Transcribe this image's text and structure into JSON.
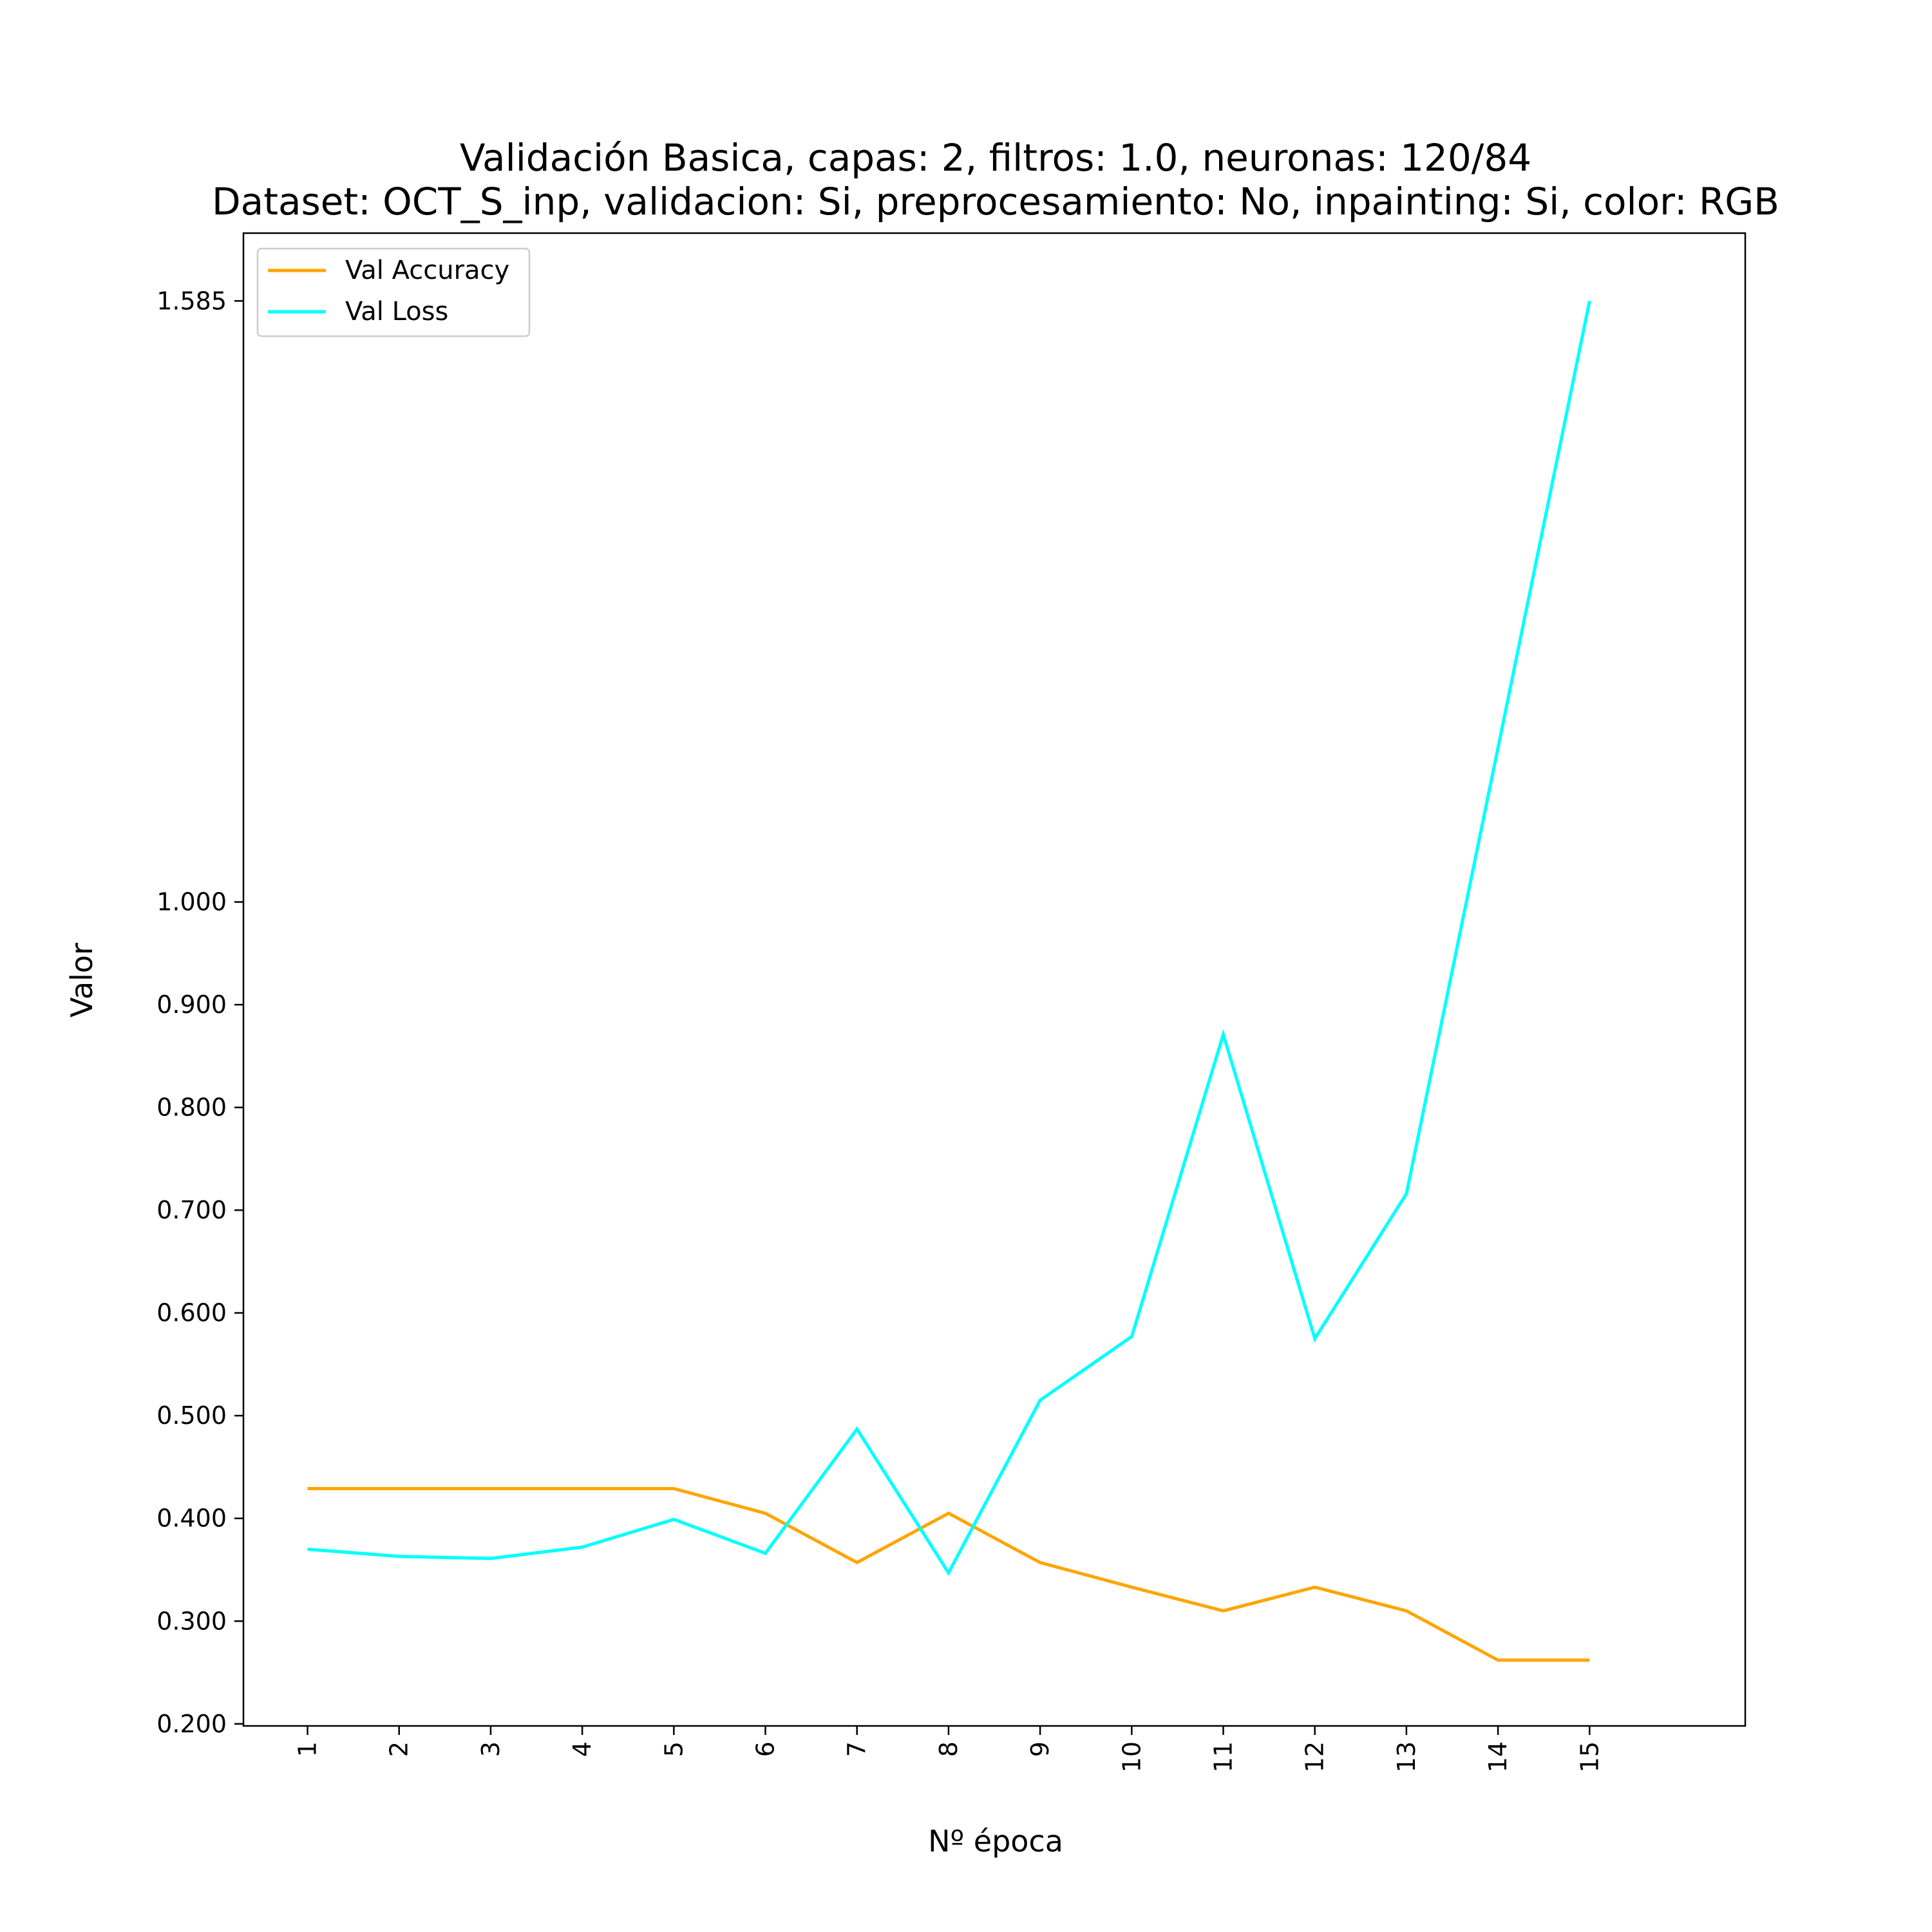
{
  "chart_data": {
    "type": "line",
    "title": "Validación Basica, capas: 2, filtros: 1.0, neuronas: 120/84",
    "subtitle": "Dataset: OCT_S_inp, validacion: Si, preprocesamiento: No, inpainting: Si, color: RGB",
    "xlabel": "Nº época",
    "ylabel": "Valor",
    "x": [
      1,
      2,
      3,
      4,
      5,
      6,
      7,
      8,
      9,
      10,
      11,
      12,
      13,
      14,
      15
    ],
    "x_tick_labels": [
      "1",
      "2",
      "3",
      "4",
      "5",
      "6",
      "7",
      "8",
      "9",
      "10",
      "11",
      "12",
      "13",
      "14",
      "15"
    ],
    "y_ticks": [
      0.2,
      0.3,
      0.4,
      0.5,
      0.6,
      0.7,
      0.8,
      0.9,
      1.0,
      1.585
    ],
    "y_tick_labels": [
      "0.200",
      "0.300",
      "0.400",
      "0.500",
      "0.600",
      "0.700",
      "0.800",
      "0.900",
      "1.000",
      "1.585"
    ],
    "xlim": [
      0.3,
      16.7
    ],
    "ylim": [
      0.198,
      1.651
    ],
    "grid": false,
    "legend_position": "top-left",
    "series": [
      {
        "name": "Val Accuracy",
        "color": "#FFA500",
        "values": [
          0.429,
          0.429,
          0.429,
          0.429,
          0.429,
          0.405,
          0.357,
          0.405,
          0.357,
          0.333,
          0.31,
          0.333,
          0.31,
          0.262,
          0.262
        ]
      },
      {
        "name": "Val Loss",
        "color": "#00FFFF",
        "values": [
          0.37,
          0.363,
          0.361,
          0.372,
          0.399,
          0.366,
          0.487,
          0.347,
          0.515,
          0.577,
          0.871,
          0.575,
          0.716,
          1.15,
          1.585
        ]
      }
    ]
  }
}
